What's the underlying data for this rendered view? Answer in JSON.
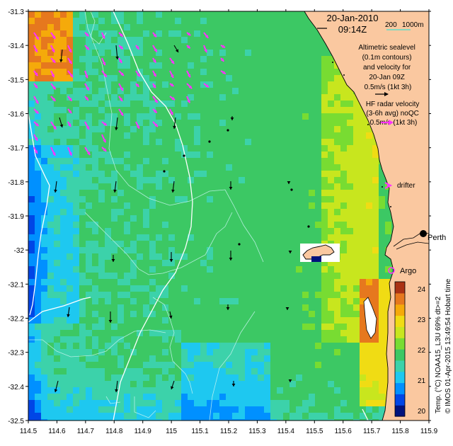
{
  "map": {
    "date": "20-Jan-2010",
    "time": "09:14Z",
    "scale_label": "200",
    "depth_label": "1000m",
    "sealevel_lines": [
      "Altimetric sealevel",
      "(0.1m contours)",
      "and velocity for",
      "20-Jan 09Z",
      "0.5m/s (1kt 3h)"
    ],
    "hf_lines": [
      "HF radar velocity",
      "(3-6h avg) noQC",
      "0.5m/s (1kt 3h)"
    ],
    "drifter_label": "drifter",
    "city_label": "Perth",
    "argo_label": "Argo",
    "credit": "© IMOS 01-Apr-2015 13:49:54 Hobart time",
    "lon_ticks": [
      "114.5",
      "114.6",
      "114.7",
      "114.8",
      "114.9",
      "115",
      "115.1",
      "115.2",
      "115.3",
      "115.4",
      "115.5",
      "115.6",
      "115.7",
      "115.8",
      "115.9"
    ],
    "lat_ticks": [
      "-31.3",
      "-31.4",
      "-31.5",
      "-31.6",
      "-31.7",
      "-31.8",
      "-31.9",
      "-32",
      "-32.1",
      "-32.2",
      "-32.3",
      "-32.4",
      "-32.5"
    ]
  },
  "colorbar": {
    "label": "Temp. (°C) NOAA15_L3U 69% dt>=2",
    "ticks": [
      "24",
      "23",
      "22",
      "21",
      "20"
    ],
    "colors": [
      "#00137d",
      "#0046e6",
      "#0090ff",
      "#1ec8f0",
      "#3cd2aa",
      "#3cc864",
      "#78dc32",
      "#c8e61e",
      "#f0dc14",
      "#f5aa0a",
      "#e6781e",
      "#aa3214"
    ]
  },
  "colors": {
    "land": "#fac8a0",
    "hf_arrow": "#ff32ff",
    "contour": "#c8f5f0",
    "isobath": "#ffffff"
  }
}
